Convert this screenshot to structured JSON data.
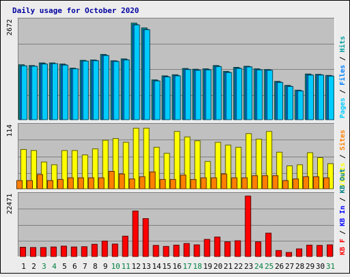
{
  "colors": {
    "background": "#ececec",
    "panel": "#c0c0c0",
    "pages": "#00ccff",
    "files": "#0080ff",
    "hits": "#00a0a0",
    "visits": "#ffff00",
    "sites": "#ff8000",
    "kb_f": "#ff0000",
    "kb_in": "#0000ff",
    "kb_out": "#008080",
    "title": "#0000a0",
    "weekend_day": "#008040",
    "weekday": "#000000"
  },
  "chart_data": {
    "type": "bar",
    "title": "Daily usage for October 2020",
    "days": [
      "1",
      "2",
      "3",
      "4",
      "5",
      "6",
      "7",
      "8",
      "9",
      "10",
      "11",
      "12",
      "13",
      "14",
      "15",
      "16",
      "17",
      "18",
      "19",
      "20",
      "21",
      "22",
      "23",
      "24",
      "25",
      "26",
      "27",
      "28",
      "29",
      "30",
      "31"
    ],
    "weekend": [
      false,
      false,
      true,
      true,
      false,
      false,
      false,
      false,
      false,
      true,
      true,
      false,
      false,
      false,
      false,
      false,
      true,
      true,
      false,
      false,
      false,
      false,
      false,
      true,
      true,
      false,
      false,
      false,
      false,
      false,
      true
    ],
    "panels": [
      {
        "ylabel_max": "2672",
        "ymax": 2672,
        "legend": [
          {
            "text": "Pages",
            "color": "#00ccff"
          },
          {
            "text": " / ",
            "color": "#000000"
          },
          {
            "text": "Files",
            "color": "#0080ff"
          },
          {
            "text": " / ",
            "color": "#000000"
          },
          {
            "text": "Hits",
            "color": "#00a0a0"
          }
        ],
        "series": [
          {
            "name": "Hits",
            "color": "#00a0a0",
            "values": [
              1490,
              1470,
              1540,
              1540,
              1510,
              1400,
              1610,
              1620,
              1770,
              1600,
              1650,
              2620,
              2490,
              1080,
              1190,
              1220,
              1390,
              1370,
              1380,
              1470,
              1310,
              1420,
              1450,
              1380,
              1360,
              1040,
              930,
              800,
              1240,
              1230,
              1200
            ]
          },
          {
            "name": "Files",
            "color": "#0080ff",
            "values": [
              1460,
              1450,
              1520,
              1520,
              1490,
              1380,
              1590,
              1610,
              1750,
              1590,
              1630,
              2580,
              2450,
              1060,
              1170,
              1200,
              1370,
              1350,
              1360,
              1450,
              1290,
              1400,
              1440,
              1360,
              1350,
              1020,
              910,
              790,
              1220,
              1220,
              1190
            ]
          },
          {
            "name": "Pages",
            "color": "#00ccff",
            "values": [
              1460,
              1450,
              1510,
              1520,
              1480,
              1380,
              1590,
              1600,
              1740,
              1580,
              1620,
              2570,
              2440,
              1050,
              1160,
              1190,
              1360,
              1340,
              1350,
              1440,
              1280,
              1390,
              1430,
              1350,
              1340,
              1010,
              900,
              780,
              1210,
              1210,
              1180
            ]
          }
        ]
      },
      {
        "ylabel_max": "114",
        "ymax": 114,
        "legend": [
          {
            "text": "Visits",
            "color": "#ffff00"
          },
          {
            "text": " / ",
            "color": "#000000"
          },
          {
            "text": "Sites",
            "color": "#ff8000"
          }
        ],
        "series": [
          {
            "name": "Visits",
            "color": "#ffff00",
            "values": [
              72,
              70,
              49,
              44,
              70,
              70,
              62,
              73,
              89,
              92,
              85,
              111,
              111,
              76,
              65,
              105,
              95,
              88,
              50,
              85,
              80,
              76,
              101,
              91,
              105,
              67,
              42,
              44,
              66,
              57,
              46
            ]
          },
          {
            "name": "Sites",
            "color": "#ff8000",
            "values": [
              15,
              15,
              26,
              15,
              17,
              20,
              20,
              20,
              20,
              32,
              27,
              18,
              22,
              31,
              17,
              17,
              25,
              17,
              20,
              20,
              27,
              20,
              20,
              24,
              24,
              24,
              15,
              18,
              22,
              22,
              20
            ]
          }
        ]
      },
      {
        "ylabel_max": "22471",
        "ymax": 22471,
        "legend": [
          {
            "text": "KB F",
            "color": "#ff0000"
          },
          {
            "text": " / ",
            "color": "#000000"
          },
          {
            "text": "KB In",
            "color": "#0000ff"
          },
          {
            "text": " / ",
            "color": "#000000"
          },
          {
            "text": "KB Out",
            "color": "#008080"
          }
        ],
        "series": [
          {
            "name": "KB F",
            "color": "#ff0000",
            "values": [
              3400,
              3300,
              3300,
              3500,
              3800,
              3500,
              3600,
              4500,
              5700,
              4600,
              7500,
              16800,
              14000,
              4100,
              3700,
              4200,
              4800,
              4300,
              6300,
              7200,
              5400,
              5800,
              22300,
              5400,
              8600,
              2200,
              1500,
              2800,
              4200,
              4100,
              4300
            ]
          }
        ]
      }
    ]
  }
}
